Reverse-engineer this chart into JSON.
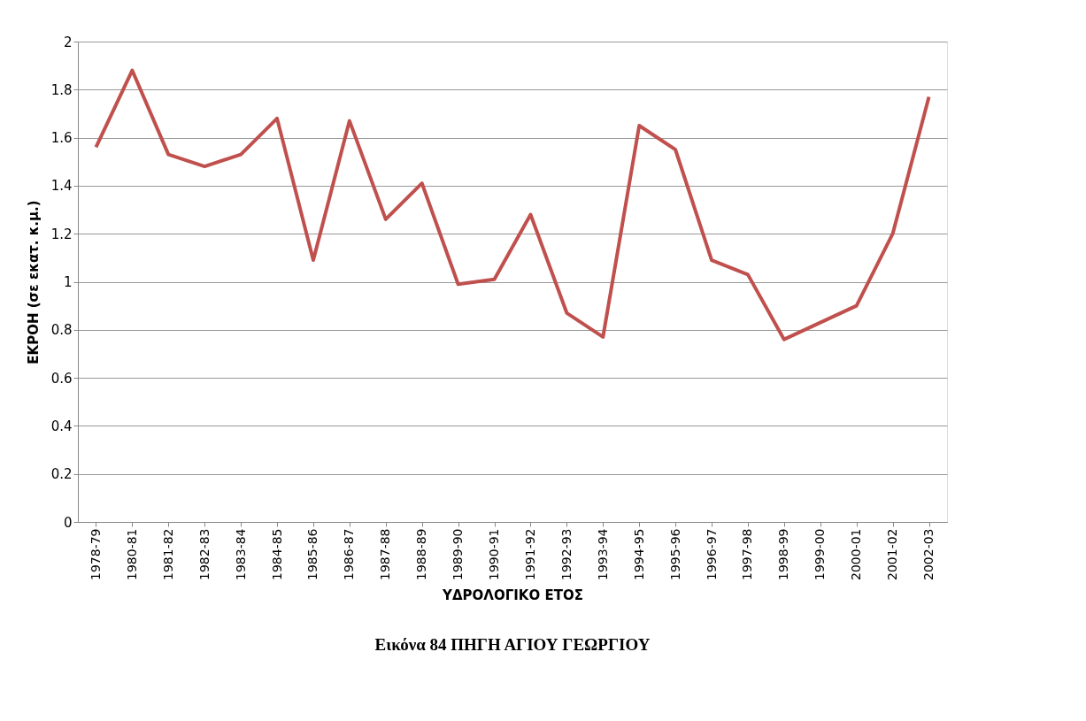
{
  "chart_data": {
    "type": "line",
    "title": "Εικόνα 84 ΠΗΓΗ ΑΓΙΟΥ ΓΕΩΡΓΙΟΥ",
    "xlabel": "ΥΔΡΟΛΟΓΙΚΟ ΕΤΟΣ",
    "ylabel": "ΕΚΡΟΗ (σε εκατ. κ.μ.)",
    "categories": [
      "1978-79",
      "1980-81",
      "1981-82",
      "1982-83",
      "1983-84",
      "1984-85",
      "1985-86",
      "1986-87",
      "1987-88",
      "1988-89",
      "1989-90",
      "1990-91",
      "1991-92",
      "1992-93",
      "1993-94",
      "1994-95",
      "1995-96",
      "1996-97",
      "1997-98",
      "1998-99",
      "1999-00",
      "2000-01",
      "2001-02",
      "2002-03"
    ],
    "series": [
      {
        "color": "#c0504d",
        "values": [
          1.56,
          1.88,
          1.53,
          1.48,
          1.53,
          1.68,
          1.09,
          1.67,
          1.26,
          1.41,
          0.99,
          1.01,
          1.28,
          0.87,
          0.77,
          1.65,
          1.55,
          1.09,
          1.03,
          0.76,
          0.83,
          0.9,
          1.2,
          1.77
        ]
      }
    ],
    "ylim": [
      0,
      2
    ],
    "yticks": [
      0,
      0.2,
      0.4,
      0.6,
      0.8,
      1,
      1.2,
      1.4,
      1.6,
      1.8,
      2
    ],
    "grid": "y",
    "marker": "none",
    "line_style": "solid"
  }
}
